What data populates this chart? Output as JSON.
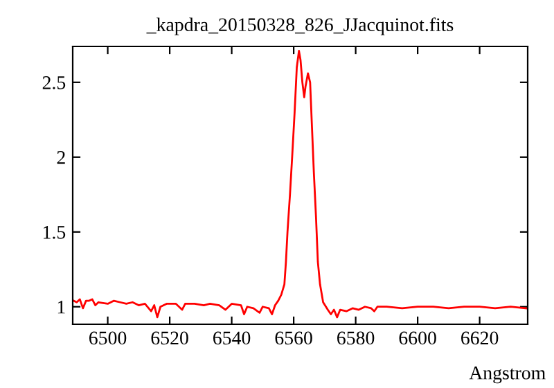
{
  "chart_data": {
    "type": "line",
    "title": "_kapdra_20150328_826_JJacquinot.fits",
    "xlabel": "Angstrom",
    "x": [
      6489,
      6490,
      6491,
      6492,
      6493,
      6494,
      6495,
      6496,
      6497,
      6500,
      6502,
      6504,
      6506,
      6508,
      6510,
      6512,
      6514,
      6515,
      6516,
      6517,
      6519,
      6522,
      6524,
      6525,
      6528,
      6531,
      6533,
      6536,
      6538,
      6540,
      6543,
      6544,
      6545,
      6547,
      6549,
      6550,
      6552,
      6553,
      6554,
      6555,
      6556,
      6557,
      6557.5,
      6558,
      6558.8,
      6559.5,
      6560.3,
      6561,
      6561.7,
      6562.2,
      6562.8,
      6563.4,
      6563.8,
      6564.6,
      6565.3,
      6565.9,
      6566.5,
      6567.2,
      6567.8,
      6568.5,
      6569.5,
      6571,
      6572,
      6573,
      6574,
      6575,
      6577,
      6579,
      6581,
      6583,
      6585,
      6586,
      6587,
      6590,
      6595,
      6600,
      6605,
      6610,
      6615,
      6620,
      6625,
      6630,
      6635
    ],
    "series": [
      {
        "color": "#ff0000",
        "values": [
          1.04,
          1.03,
          1.05,
          0.99,
          1.04,
          1.04,
          1.05,
          1.01,
          1.03,
          1.02,
          1.04,
          1.03,
          1.02,
          1.03,
          1.01,
          1.02,
          0.97,
          1.01,
          0.93,
          1.0,
          1.02,
          1.02,
          0.98,
          1.02,
          1.02,
          1.01,
          1.02,
          1.01,
          0.98,
          1.02,
          1.01,
          0.95,
          1.0,
          0.99,
          0.96,
          1.0,
          0.99,
          0.95,
          1.01,
          1.04,
          1.08,
          1.15,
          1.3,
          1.5,
          1.75,
          2.0,
          2.3,
          2.6,
          2.71,
          2.65,
          2.5,
          2.4,
          2.47,
          2.56,
          2.5,
          2.2,
          1.9,
          1.6,
          1.3,
          1.15,
          1.03,
          0.98,
          0.95,
          0.98,
          0.93,
          0.98,
          0.97,
          0.99,
          0.98,
          1.0,
          0.99,
          0.97,
          1.0,
          1.0,
          0.99,
          1.0,
          1.0,
          0.99,
          1.0,
          1.0,
          0.99,
          1.0,
          0.99
        ]
      }
    ],
    "xlim": [
      6488.7,
      6635.5
    ],
    "ylim": [
      0.883,
      2.74
    ],
    "xticks": [
      6500,
      6520,
      6540,
      6560,
      6580,
      6600,
      6620
    ],
    "yticks": [
      1,
      1.5,
      2,
      2.5
    ],
    "grid": false,
    "legend": false
  }
}
